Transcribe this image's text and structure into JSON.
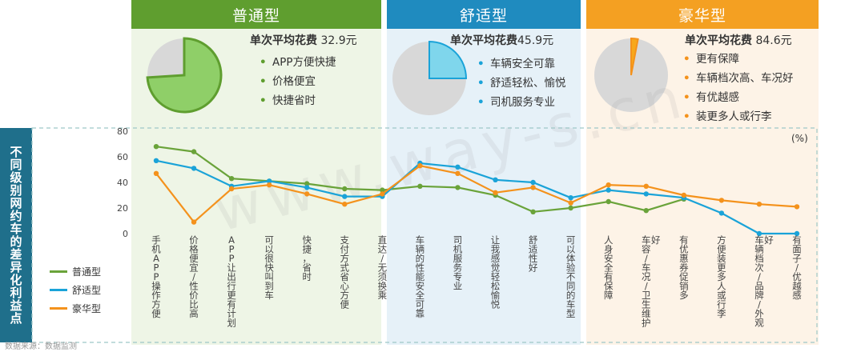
{
  "panels": [
    {
      "title": "普通型",
      "cost_label": "单次平均花费",
      "cost_value": "32.9元",
      "pie_share": 0.74,
      "bullets": [
        "APP方便快捷",
        "价格便宜",
        "快捷省时"
      ],
      "color": "#5f9e2f",
      "light": "#eef5e6",
      "pie_fill": "#8fcf68"
    },
    {
      "title": "舒适型",
      "cost_label": "单次平均花费",
      "cost_value": "45.9元",
      "pie_share": 0.25,
      "bullets": [
        "车辆安全可靠",
        "舒适轻松、愉悦",
        "司机服务专业"
      ],
      "color": "#1f8bbf",
      "light": "#e6f1f8",
      "pie_fill": "#7fd6ec"
    },
    {
      "title": "豪华型",
      "cost_label": "单次平均花费",
      "cost_value": "84.6元",
      "pie_share": 0.03,
      "bullets": [
        "更有保障",
        "车辆档次高、车况好",
        "有优越感",
        "装更多人或行李"
      ],
      "color": "#f4a022",
      "light": "#fdf3e7",
      "pie_fill": "#f7a81b"
    }
  ],
  "side_title": "不同级别网约车的差异化利益点",
  "unit": "(%)",
  "watermark": "www.way-s.cn",
  "footer": "数据来源：数据监测",
  "chart_data": {
    "type": "line",
    "categories": [
      "手机APP操作方便",
      "价格便宜/性价比高",
      "APP让出行更有计划",
      "可以很快叫到车",
      "快捷，省时",
      "支付方式省心方便",
      "直达/无须换乘",
      "车辆的性能安全可靠",
      "司机服务专业",
      "让我感觉轻松愉悦",
      "舒适性好",
      "可以体验不同的车型",
      "人身安全有保障",
      "车容/车况/卫生维护好",
      "有优惠券促销多",
      "方便装更多人或行李",
      "车辆档次/品牌/外观好",
      "有面子/优越感"
    ],
    "series": [
      {
        "name": "普通型",
        "color": "#6aa33a",
        "values": [
          68,
          64,
          43,
          41,
          39,
          35,
          34,
          37,
          36,
          30,
          17,
          20,
          25,
          18,
          27,
          null,
          null,
          null
        ]
      },
      {
        "name": "舒适型",
        "color": "#1aa3d8",
        "values": [
          57,
          51,
          37,
          41,
          36,
          29,
          29,
          55,
          52,
          42,
          40,
          28,
          34,
          31,
          28,
          16,
          0,
          0
        ]
      },
      {
        "name": "豪华型",
        "color": "#f4921c",
        "values": [
          47,
          9,
          35,
          38,
          31,
          23,
          31,
          53,
          47,
          32,
          36,
          24,
          38,
          37,
          30,
          26,
          23,
          21
        ]
      }
    ],
    "yticks": [
      0,
      20,
      40,
      60,
      80
    ],
    "ylim": [
      0,
      80
    ],
    "ylabel": "(%)"
  }
}
